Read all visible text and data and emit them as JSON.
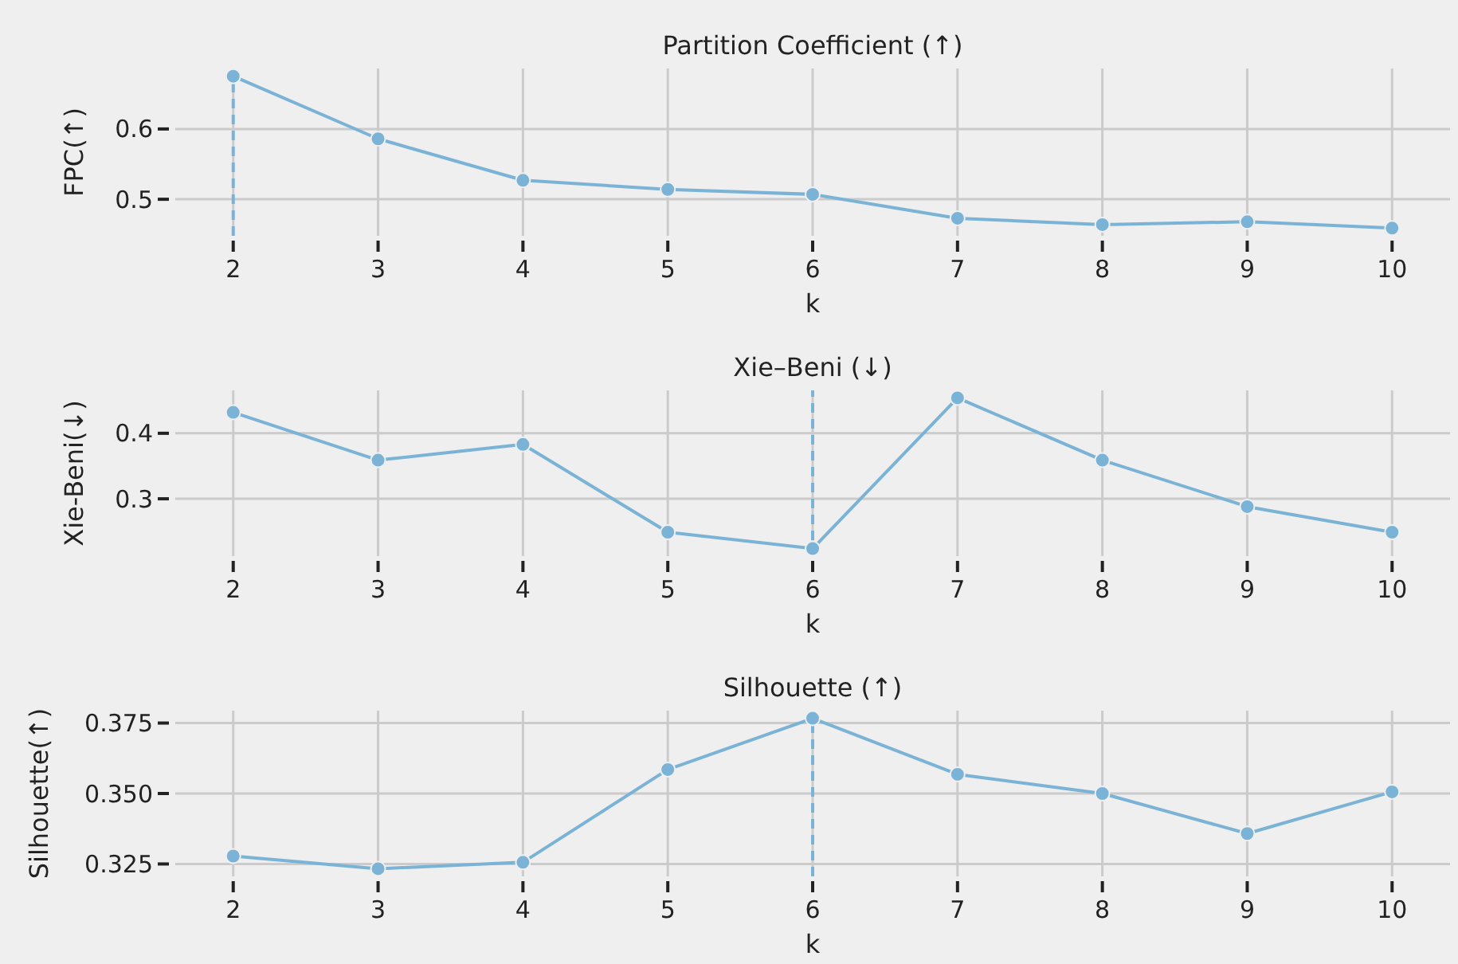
{
  "chart_data": [
    {
      "type": "line",
      "title": "Partition Coefficient (↑)",
      "xlabel": "k",
      "ylabel": "FPC(↑)",
      "x": [
        2,
        3,
        4,
        5,
        6,
        7,
        8,
        9,
        10
      ],
      "xlim": [
        1.6,
        10.4
      ],
      "xticks": [
        2,
        3,
        4,
        5,
        6,
        7,
        8,
        9,
        10
      ],
      "ylim": [
        0.448,
        0.686
      ],
      "yticks": [
        0.5,
        0.6
      ],
      "grid": true,
      "marker": "circle",
      "line_style": "solid",
      "series": [
        {
          "color": "#7ab3d6",
          "values": [
            0.675,
            0.586,
            0.527,
            0.514,
            0.507,
            0.473,
            0.464,
            0.468,
            0.459
          ]
        }
      ],
      "ref_lines": [
        {
          "axis": "x",
          "value": 2,
          "color": "#7ab3d6",
          "line_style": "dashed"
        }
      ]
    },
    {
      "type": "line",
      "title": "Xie–Beni (↓)",
      "xlabel": "k",
      "ylabel": "Xie-Beni(↓)",
      "x": [
        2,
        3,
        4,
        5,
        6,
        7,
        8,
        9,
        10
      ],
      "xlim": [
        1.6,
        10.4
      ],
      "xticks": [
        2,
        3,
        4,
        5,
        6,
        7,
        8,
        9,
        10
      ],
      "ylim": [
        0.2125,
        0.4655
      ],
      "yticks": [
        0.3,
        0.4
      ],
      "grid": true,
      "marker": "circle",
      "line_style": "solid",
      "series": [
        {
          "color": "#7ab3d6",
          "values": [
            0.432,
            0.359,
            0.383,
            0.249,
            0.224,
            0.454,
            0.359,
            0.288,
            0.249
          ]
        }
      ],
      "ref_lines": [
        {
          "axis": "x",
          "value": 6,
          "color": "#7ab3d6",
          "line_style": "dashed"
        }
      ]
    },
    {
      "type": "line",
      "title": "Silhouette (↑)",
      "xlabel": "k",
      "ylabel": "Silhouette(↑)",
      "x": [
        2,
        3,
        4,
        5,
        6,
        7,
        8,
        9,
        10
      ],
      "xlim": [
        1.6,
        10.4
      ],
      "xticks": [
        2,
        3,
        4,
        5,
        6,
        7,
        8,
        9,
        10
      ],
      "ylim": [
        0.3206,
        0.3794
      ],
      "yticks": [
        {
          "value": 0.325,
          "label": "0.325"
        },
        {
          "value": 0.35,
          "label": "0.350"
        },
        {
          "value": 0.375,
          "label": "0.375"
        }
      ],
      "grid": true,
      "marker": "circle",
      "line_style": "solid",
      "series": [
        {
          "color": "#7ab3d6",
          "values": [
            0.3278,
            0.3233,
            0.3256,
            0.3585,
            0.3767,
            0.3568,
            0.35,
            0.3358,
            0.3506
          ]
        }
      ],
      "ref_lines": [
        {
          "axis": "x",
          "value": 6,
          "color": "#7ab3d6",
          "line_style": "dashed"
        }
      ]
    }
  ]
}
